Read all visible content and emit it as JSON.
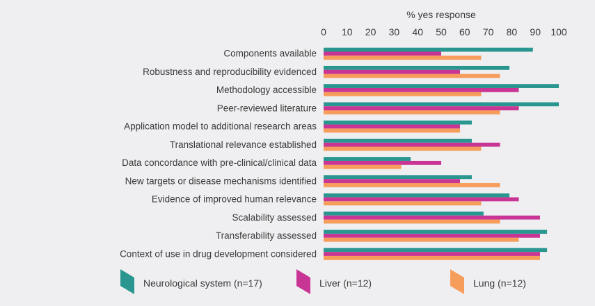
{
  "chart_data": {
    "type": "bar",
    "orientation": "horizontal",
    "title": "",
    "xlabel": "% yes response",
    "ylabel": "",
    "xlim": [
      0,
      100
    ],
    "xticks": [
      0,
      10,
      20,
      30,
      40,
      50,
      60,
      70,
      80,
      90,
      100
    ],
    "xaxis_position": "top",
    "grid": false,
    "legend_position": "bottom",
    "categories": [
      "Components available",
      "Robustness and reproducibility evidenced",
      "Methodology accessible",
      "Peer-reviewed literature",
      "Application model to additional research areas",
      "Translational relevance established",
      "Data concordance with pre-clinical/clinical data",
      "New targets or disease mechanisms identified",
      "Evidence of improved human relevance",
      "Scalability assessed",
      "Transferability assessed",
      "Context of use in drug development considered"
    ],
    "series": [
      {
        "name": "Neurological system (n=17)",
        "color": "#2a9690",
        "values": [
          89,
          79,
          100,
          100,
          63,
          63,
          37,
          63,
          79,
          68,
          95,
          95
        ]
      },
      {
        "name": "Liver (n=12)",
        "color": "#c93594",
        "values": [
          50,
          58,
          83,
          83,
          58,
          75,
          50,
          58,
          83,
          92,
          92,
          92
        ]
      },
      {
        "name": "Lung (n=12)",
        "color": "#f79d5c",
        "values": [
          67,
          75,
          67,
          75,
          58,
          67,
          33,
          75,
          67,
          75,
          83,
          92
        ]
      }
    ]
  }
}
